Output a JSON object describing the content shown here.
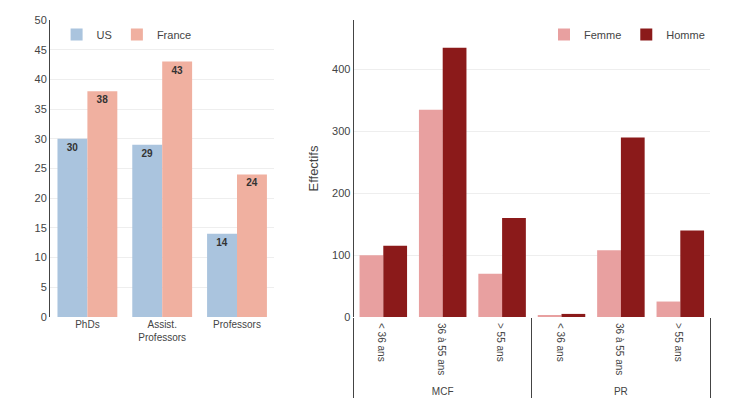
{
  "chart_data": [
    {
      "type": "bar",
      "categories": [
        "PhDs",
        "Assist.\nProfessors",
        "Professors"
      ],
      "series": [
        {
          "name": "US",
          "color": "#aac4de",
          "values": [
            30,
            29,
            14
          ]
        },
        {
          "name": "France",
          "color": "#f0b0a0",
          "values": [
            38,
            43,
            24
          ]
        }
      ],
      "ylim": [
        0,
        50
      ],
      "yticks": [
        0,
        5,
        10,
        15,
        20,
        25,
        30,
        35,
        40,
        45,
        50
      ],
      "grid": true,
      "legend": "upper left",
      "data_labels": true
    },
    {
      "type": "bar",
      "categories": [
        "< 36 ans",
        "36 à 55 ans",
        "> 55 ans",
        "< 36 ans",
        "36 à 55 ans",
        "> 55 ans"
      ],
      "group_labels": [
        "MCF",
        "MCF",
        "MCF",
        "PR",
        "PR",
        "PR"
      ],
      "series": [
        {
          "name": "Femme",
          "color": "#e8a0a0",
          "values": [
            100,
            335,
            70,
            3,
            108,
            25
          ]
        },
        {
          "name": "Homme",
          "color": "#8b1a1a",
          "values": [
            115,
            435,
            160,
            5,
            290,
            140
          ]
        }
      ],
      "ylabel": "Effectifs",
      "ylim": [
        0,
        480
      ],
      "yticks": [
        0,
        100,
        200,
        300,
        400
      ],
      "grid": true,
      "legend": "upper right",
      "data_labels": false
    }
  ]
}
